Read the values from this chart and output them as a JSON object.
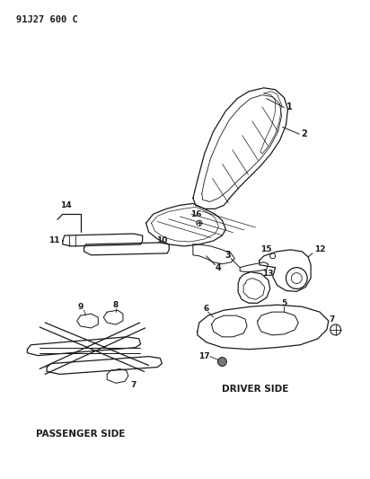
{
  "title": "91J27 600 C",
  "bg": "#ffffff",
  "lc": "#1a1a1a",
  "label_passenger": "PASSENGER SIDE",
  "label_driver": "DRIVER SIDE"
}
